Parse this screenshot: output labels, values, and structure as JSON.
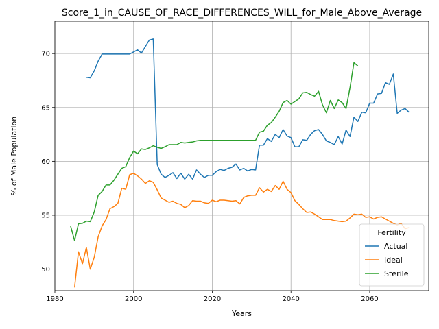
{
  "chart_data": {
    "type": "line",
    "title": "Score_1_in_CAUSE_OF_RACE_DIFFERENCES_WILL_for_Male_Above_Average",
    "xlabel": "Years",
    "ylabel": "% of Male Population",
    "xlim": [
      1980,
      2075
    ],
    "ylim": [
      48,
      73
    ],
    "xticks": [
      1980,
      2000,
      2020,
      2040,
      2060
    ],
    "yticks": [
      50,
      55,
      60,
      65,
      70
    ],
    "grid": true,
    "legend": {
      "title": "Fertility",
      "position": "lower-right"
    },
    "series": [
      {
        "name": "Actual",
        "color": "#1f77b4",
        "x": [
          1988,
          1989,
          1990,
          1991,
          1992,
          1993,
          1994,
          1995,
          1996,
          1997,
          1998,
          1999,
          2000,
          2001,
          2002,
          2003,
          2004,
          2005,
          2006,
          2007,
          2008,
          2009,
          2010,
          2011,
          2012,
          2013,
          2014,
          2015,
          2016,
          2017,
          2018,
          2019,
          2020,
          2021,
          2022,
          2023,
          2024,
          2025,
          2026,
          2027,
          2028,
          2029,
          2030,
          2031,
          2032,
          2033,
          2034,
          2035,
          2036,
          2037,
          2038,
          2039,
          2040,
          2041,
          2042,
          2043,
          2044,
          2045,
          2046,
          2047,
          2048,
          2049,
          2050,
          2051,
          2052,
          2053,
          2054,
          2055,
          2056,
          2057,
          2058,
          2059,
          2060,
          2061,
          2062,
          2063,
          2064,
          2065,
          2066,
          2067,
          2068,
          2069,
          2070
        ],
        "y": [
          67.8,
          67.75,
          68.4,
          69.3,
          69.95,
          69.95,
          69.95,
          69.95,
          69.95,
          69.95,
          69.95,
          69.95,
          70.15,
          70.35,
          70.05,
          70.65,
          71.25,
          71.35,
          59.7,
          58.8,
          58.5,
          58.7,
          58.95,
          58.4,
          58.9,
          58.35,
          58.8,
          58.35,
          59.2,
          58.8,
          58.5,
          58.7,
          58.7,
          59.05,
          59.25,
          59.15,
          59.35,
          59.45,
          59.75,
          59.2,
          59.35,
          59.1,
          59.25,
          59.2,
          61.5,
          61.5,
          62.1,
          61.85,
          62.5,
          62.2,
          62.95,
          62.35,
          62.2,
          61.35,
          61.35,
          62.0,
          61.95,
          62.5,
          62.85,
          62.95,
          62.5,
          61.9,
          61.75,
          61.55,
          62.3,
          61.6,
          62.9,
          62.3,
          64.1,
          63.7,
          64.55,
          64.5,
          65.4,
          65.4,
          66.25,
          66.3,
          67.3,
          67.15,
          68.1,
          64.45,
          64.75,
          64.9,
          64.55
        ]
      },
      {
        "name": "Ideal",
        "color": "#ff7f0e",
        "x": [
          1985,
          1986,
          1987,
          1988,
          1989,
          1990,
          1991,
          1992,
          1993,
          1994,
          1995,
          1996,
          1997,
          1998,
          1999,
          2000,
          2001,
          2002,
          2003,
          2004,
          2005,
          2006,
          2007,
          2008,
          2009,
          2010,
          2011,
          2012,
          2013,
          2014,
          2015,
          2016,
          2017,
          2018,
          2019,
          2020,
          2021,
          2022,
          2023,
          2024,
          2025,
          2026,
          2027,
          2028,
          2029,
          2030,
          2031,
          2032,
          2033,
          2034,
          2035,
          2036,
          2037,
          2038,
          2039,
          2040,
          2041,
          2042,
          2043,
          2044,
          2045,
          2046,
          2047,
          2048,
          2049,
          2050,
          2051,
          2052,
          2053,
          2054,
          2055,
          2056,
          2057,
          2058,
          2059,
          2060,
          2061,
          2062,
          2063,
          2064,
          2065,
          2066,
          2067,
          2068,
          2069,
          2070
        ],
        "y": [
          48.3,
          51.6,
          50.5,
          52.0,
          50.0,
          51.1,
          53.0,
          54.0,
          54.6,
          55.6,
          55.8,
          56.1,
          57.5,
          57.4,
          58.75,
          58.9,
          58.65,
          58.35,
          57.95,
          58.2,
          58.05,
          57.35,
          56.6,
          56.4,
          56.2,
          56.3,
          56.1,
          56.0,
          55.7,
          55.9,
          56.35,
          56.3,
          56.3,
          56.15,
          56.1,
          56.4,
          56.25,
          56.4,
          56.4,
          56.35,
          56.3,
          56.35,
          56.05,
          56.65,
          56.8,
          56.85,
          56.85,
          57.55,
          57.15,
          57.4,
          57.2,
          57.75,
          57.4,
          58.15,
          57.4,
          57.1,
          56.35,
          56.0,
          55.6,
          55.25,
          55.3,
          55.1,
          54.85,
          54.6,
          54.6,
          54.6,
          54.5,
          54.45,
          54.4,
          54.45,
          54.75,
          55.1,
          55.05,
          55.1,
          54.8,
          54.85,
          54.65,
          54.8,
          54.85,
          54.65,
          54.45,
          54.25,
          54.1,
          54.25,
          53.75,
          53.85
        ]
      },
      {
        "name": "Sterile",
        "color": "#2ca02c",
        "x": [
          1984,
          1985,
          1986,
          1987,
          1988,
          1989,
          1990,
          1991,
          1992,
          1993,
          1994,
          1995,
          1996,
          1997,
          1998,
          1999,
          2000,
          2001,
          2002,
          2003,
          2004,
          2005,
          2006,
          2007,
          2008,
          2009,
          2010,
          2011,
          2012,
          2013,
          2014,
          2015,
          2016,
          2017,
          2018,
          2019,
          2020,
          2021,
          2022,
          2023,
          2024,
          2025,
          2026,
          2027,
          2028,
          2029,
          2030,
          2031,
          2032,
          2033,
          2034,
          2035,
          2036,
          2037,
          2038,
          2039,
          2040,
          2041,
          2042,
          2043,
          2044,
          2045,
          2046,
          2047,
          2048,
          2049,
          2050,
          2051,
          2052,
          2053,
          2054,
          2055,
          2056,
          2057
        ],
        "y": [
          54.0,
          52.65,
          54.2,
          54.25,
          54.45,
          54.4,
          55.3,
          56.85,
          57.2,
          57.8,
          57.8,
          58.25,
          58.8,
          59.35,
          59.5,
          60.35,
          60.95,
          60.7,
          61.15,
          61.1,
          61.25,
          61.45,
          61.3,
          61.2,
          61.35,
          61.55,
          61.55,
          61.55,
          61.75,
          61.7,
          61.75,
          61.8,
          61.9,
          61.95,
          61.95,
          61.95,
          61.95,
          61.95,
          61.95,
          61.95,
          61.95,
          61.95,
          61.95,
          61.95,
          61.95,
          61.95,
          61.95,
          61.95,
          62.7,
          62.8,
          63.35,
          63.6,
          64.1,
          64.65,
          65.45,
          65.65,
          65.3,
          65.55,
          65.8,
          66.35,
          66.4,
          66.2,
          66.05,
          66.5,
          65.25,
          64.5,
          65.65,
          64.9,
          65.7,
          65.45,
          64.9,
          66.85,
          69.15,
          68.85
        ]
      }
    ]
  }
}
